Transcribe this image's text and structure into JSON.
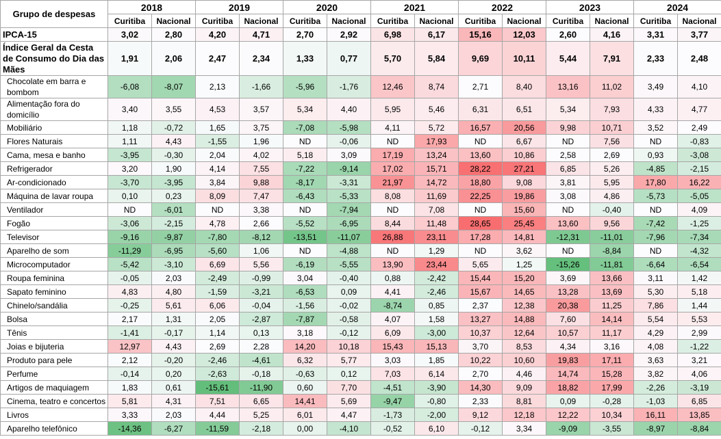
{
  "table": {
    "group_header": "Grupo de despesas",
    "years": [
      "2018",
      "2019",
      "2020",
      "2021",
      "2022",
      "2023",
      "2024"
    ],
    "sub_headers": [
      "Curitiba",
      "Nacional"
    ],
    "rows": [
      {
        "label": "IPCA-15",
        "kind": "ipca",
        "values": [
          "3,02",
          "2,80",
          "4,20",
          "4,71",
          "2,70",
          "2,92",
          "6,98",
          "6,17",
          "15,16",
          "12,03",
          "2,60",
          "4,16",
          "3,31",
          "3,77"
        ]
      },
      {
        "label": "Índice Geral da Cesta de Consumo do Dia das Mães",
        "kind": "igc",
        "values": [
          "1,91",
          "2,06",
          "2,47",
          "2,34",
          "1,33",
          "0,77",
          "5,70",
          "5,84",
          "9,69",
          "10,11",
          "5,44",
          "7,91",
          "2,33",
          "2,48"
        ]
      },
      {
        "label": "Chocolate em barra e bombom",
        "kind": "item2",
        "values": [
          "-6,08",
          "-8,07",
          "2,13",
          "-1,66",
          "-5,96",
          "-1,76",
          "12,46",
          "8,74",
          "2,71",
          "8,40",
          "13,16",
          "11,02",
          "3,49",
          "4,10"
        ]
      },
      {
        "label": "Alimentação fora do domicílio",
        "kind": "item2",
        "values": [
          "3,40",
          "3,55",
          "4,53",
          "3,57",
          "5,34",
          "4,40",
          "5,95",
          "5,46",
          "6,31",
          "6,51",
          "5,34",
          "7,93",
          "4,33",
          "4,77"
        ]
      },
      {
        "label": "Mobiliário",
        "kind": "item",
        "values": [
          "1,18",
          "-0,72",
          "1,65",
          "3,75",
          "-7,08",
          "-5,98",
          "4,11",
          "5,72",
          "16,57",
          "20,56",
          "9,98",
          "10,71",
          "3,52",
          "2,49"
        ]
      },
      {
        "label": "Flores Naturais",
        "kind": "item",
        "values": [
          "1,11",
          "4,43",
          "-1,55",
          "1,96",
          "ND",
          "-0,06",
          "ND",
          "17,93",
          "ND",
          "6,67",
          "ND",
          "7,56",
          "ND",
          "-0,83"
        ]
      },
      {
        "label": "Cama, mesa e banho",
        "kind": "item",
        "values": [
          "-3,95",
          "-0,30",
          "2,04",
          "4,02",
          "5,18",
          "3,09",
          "17,19",
          "13,24",
          "13,60",
          "10,86",
          "2,58",
          "2,69",
          "0,93",
          "-3,08"
        ]
      },
      {
        "label": "Refrigerador",
        "kind": "item",
        "values": [
          "3,20",
          "1,90",
          "4,14",
          "7,55",
          "-7,22",
          "-9,14",
          "17,02",
          "15,71",
          "28,22",
          "27,21",
          "6,85",
          "5,26",
          "-4,85",
          "-2,15"
        ]
      },
      {
        "label": "Ar-condicionado",
        "kind": "item",
        "values": [
          "-3,70",
          "-3,95",
          "3,84",
          "9,88",
          "-8,17",
          "-3,31",
          "21,97",
          "14,72",
          "18,80",
          "9,08",
          "3,81",
          "5,95",
          "17,80",
          "16,22"
        ]
      },
      {
        "label": "Máquina de lavar roupa",
        "kind": "item",
        "values": [
          "0,10",
          "0,23",
          "8,09",
          "7,47",
          "-6,43",
          "-5,33",
          "8,08",
          "11,69",
          "22,25",
          "19,86",
          "3,08",
          "4,86",
          "-5,73",
          "-5,05"
        ]
      },
      {
        "label": "Ventilador",
        "kind": "item",
        "values": [
          "ND",
          "-6,01",
          "ND",
          "3,38",
          "ND",
          "-7,94",
          "ND",
          "7,08",
          "ND",
          "15,60",
          "ND",
          "-0,40",
          "ND",
          "4,09"
        ]
      },
      {
        "label": "Fogão",
        "kind": "item",
        "values": [
          "-3,06",
          "-2,15",
          "4,78",
          "2,66",
          "-5,52",
          "-6,95",
          "8,44",
          "11,48",
          "28,65",
          "25,45",
          "13,60",
          "9,56",
          "-7,42",
          "-1,25"
        ]
      },
      {
        "label": "Televisor",
        "kind": "item",
        "values": [
          "-9,16",
          "-9,87",
          "-7,80",
          "-8,12",
          "-13,51",
          "-11,07",
          "26,88",
          "23,11",
          "17,28",
          "14,81",
          "-12,31",
          "-11,01",
          "-7,96",
          "-7,34"
        ]
      },
      {
        "label": "Aparelho de som",
        "kind": "item",
        "values": [
          "-11,29",
          "-6,95",
          "-5,60",
          "1,06",
          "ND",
          "-4,88",
          "ND",
          "1,29",
          "ND",
          "3,62",
          "ND",
          "-8,84",
          "ND",
          "-4,32"
        ]
      },
      {
        "label": "Microcomputador",
        "kind": "item",
        "values": [
          "-5,42",
          "-3,10",
          "6,69",
          "5,56",
          "-6,19",
          "-5,55",
          "13,90",
          "23,44",
          "5,65",
          "1,25",
          "-15,26",
          "-11,81",
          "-6,64",
          "-6,54"
        ]
      },
      {
        "label": "Roupa feminina",
        "kind": "item",
        "values": [
          "-0,05",
          "2,03",
          "-2,49",
          "-0,99",
          "3,04",
          "-0,40",
          "0,88",
          "-2,42",
          "15,44",
          "15,20",
          "3,69",
          "13,66",
          "3,11",
          "1,42"
        ]
      },
      {
        "label": "Sapato feminino",
        "kind": "item",
        "values": [
          "4,83",
          "4,80",
          "-1,59",
          "-3,21",
          "-6,53",
          "0,09",
          "4,41",
          "-2,46",
          "15,67",
          "14,65",
          "13,28",
          "13,69",
          "5,30",
          "5,18"
        ]
      },
      {
        "label": "Chinelo/sandália",
        "kind": "item",
        "values": [
          "-0,25",
          "5,61",
          "6,06",
          "-0,04",
          "-1,56",
          "-0,02",
          "-8,74",
          "0,85",
          "2,37",
          "12,38",
          "20,38",
          "11,25",
          "7,86",
          "1,44"
        ]
      },
      {
        "label": "Bolsa",
        "kind": "item",
        "values": [
          "2,17",
          "1,31",
          "2,05",
          "-2,87",
          "-7,87",
          "-0,58",
          "4,07",
          "1,58",
          "13,27",
          "14,88",
          "7,60",
          "14,14",
          "5,54",
          "5,53"
        ]
      },
      {
        "label": "Tênis",
        "kind": "item",
        "values": [
          "-1,41",
          "-0,17",
          "1,14",
          "0,13",
          "3,18",
          "-0,12",
          "6,09",
          "-3,00",
          "10,37",
          "12,64",
          "10,57",
          "11,17",
          "4,29",
          "2,99"
        ]
      },
      {
        "label": "Joias e bijuteria",
        "kind": "item",
        "values": [
          "12,97",
          "4,43",
          "2,69",
          "2,28",
          "14,20",
          "10,18",
          "15,43",
          "15,13",
          "3,70",
          "8,53",
          "4,34",
          "3,16",
          "4,08",
          "-1,22"
        ]
      },
      {
        "label": "Produto para pele",
        "kind": "item",
        "values": [
          "2,12",
          "-0,20",
          "-2,46",
          "-4,61",
          "6,32",
          "5,77",
          "3,03",
          "1,85",
          "10,22",
          "10,60",
          "19,83",
          "17,11",
          "3,63",
          "3,21"
        ]
      },
      {
        "label": "Perfume",
        "kind": "item",
        "values": [
          "-0,14",
          "0,20",
          "-2,63",
          "-0,18",
          "-0,63",
          "0,12",
          "7,03",
          "6,14",
          "2,70",
          "4,46",
          "14,74",
          "15,28",
          "3,82",
          "4,06"
        ]
      },
      {
        "label": "Artigos de maquiagem",
        "kind": "item",
        "values": [
          "1,83",
          "0,61",
          "-15,61",
          "-11,90",
          "0,60",
          "7,70",
          "-4,51",
          "-3,90",
          "14,30",
          "9,09",
          "18,82",
          "17,99",
          "-2,26",
          "-3,19"
        ]
      },
      {
        "label": "Cinema, teatro e concertos",
        "kind": "item",
        "values": [
          "5,81",
          "4,31",
          "7,51",
          "6,65",
          "14,41",
          "5,69",
          "-9,47",
          "-0,80",
          "2,33",
          "8,81",
          "0,09",
          "-0,28",
          "-1,03",
          "6,85"
        ]
      },
      {
        "label": "Livros",
        "kind": "item",
        "values": [
          "3,33",
          "2,03",
          "4,44",
          "5,25",
          "6,01",
          "4,47",
          "-1,73",
          "-2,00",
          "9,12",
          "12,18",
          "12,22",
          "10,34",
          "16,11",
          "13,85"
        ]
      },
      {
        "label": "Aparelho telefônico",
        "kind": "item",
        "values": [
          "-14,36",
          "-6,27",
          "-11,59",
          "-2,18",
          "0,00",
          "-4,10",
          "-0,52",
          "6,10",
          "-0,12",
          "3,34",
          "-9,09",
          "-3,55",
          "-8,97",
          "-8,84"
        ]
      }
    ]
  },
  "colors": {
    "positive_max": "#f8696b",
    "negative_max": "#63be7b",
    "neutral": "#fcfcff",
    "border": "#a6a6a6"
  }
}
